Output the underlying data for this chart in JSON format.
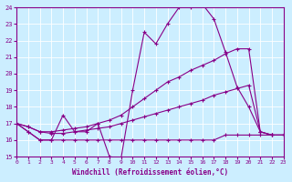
{
  "bg_color": "#cceeff",
  "grid_color": "#aadddd",
  "line_color": "#880088",
  "xlabel": "Windchill (Refroidissement éolien,°C)",
  "xlim": [
    0,
    23
  ],
  "ylim": [
    15,
    24
  ],
  "xticks": [
    0,
    1,
    2,
    3,
    4,
    5,
    6,
    7,
    8,
    9,
    10,
    11,
    12,
    13,
    14,
    15,
    16,
    17,
    18,
    19,
    20,
    21,
    22,
    23
  ],
  "yticks": [
    15,
    16,
    17,
    18,
    19,
    20,
    21,
    22,
    23,
    24
  ],
  "series": [
    {
      "x": [
        0,
        1,
        2,
        3,
        4,
        5,
        6,
        7,
        8,
        9,
        10,
        11,
        12,
        13,
        14,
        15,
        16,
        17,
        18,
        19,
        20,
        21,
        22,
        23
      ],
      "y": [
        17.0,
        16.5,
        16.0,
        16.0,
        16.0,
        16.0,
        16.0,
        16.0,
        16.0,
        16.0,
        16.0,
        16.0,
        16.0,
        16.0,
        16.0,
        16.0,
        16.0,
        16.0,
        16.3,
        16.3,
        16.3,
        16.3,
        16.3,
        16.3
      ]
    },
    {
      "x": [
        0,
        1,
        2,
        3,
        4,
        5,
        6,
        7,
        8,
        9,
        10,
        11,
        12,
        13,
        14,
        15,
        16,
        17,
        18,
        19,
        20,
        21,
        22,
        23
      ],
      "y": [
        17.0,
        16.8,
        16.5,
        16.4,
        16.4,
        16.5,
        16.6,
        16.7,
        16.8,
        17.0,
        17.2,
        17.4,
        17.6,
        17.8,
        18.0,
        18.2,
        18.4,
        18.7,
        18.9,
        19.1,
        19.3,
        16.5,
        16.3,
        16.3
      ]
    },
    {
      "x": [
        0,
        1,
        2,
        3,
        4,
        5,
        6,
        7,
        8,
        9,
        10,
        11,
        12,
        13,
        14,
        15,
        16,
        17,
        18,
        19,
        20,
        21,
        22,
        23
      ],
      "y": [
        17.0,
        16.8,
        16.5,
        16.5,
        16.6,
        16.7,
        16.8,
        17.0,
        17.2,
        17.5,
        18.0,
        18.5,
        19.0,
        19.5,
        19.8,
        20.2,
        20.5,
        20.8,
        21.2,
        21.5,
        21.5,
        16.5,
        16.3,
        16.3
      ]
    },
    {
      "x": [
        0,
        1,
        2,
        3,
        4,
        5,
        6,
        7,
        8,
        9,
        10,
        11,
        12,
        13,
        14,
        15,
        16,
        17,
        18,
        19,
        20,
        21,
        22,
        23
      ],
      "y": [
        17.0,
        16.5,
        16.0,
        16.0,
        17.5,
        16.5,
        16.5,
        17.0,
        15.0,
        14.9,
        19.0,
        22.5,
        21.8,
        23.0,
        24.0,
        24.0,
        24.2,
        23.3,
        21.3,
        19.2,
        18.0,
        16.5,
        16.3,
        16.3
      ]
    }
  ]
}
